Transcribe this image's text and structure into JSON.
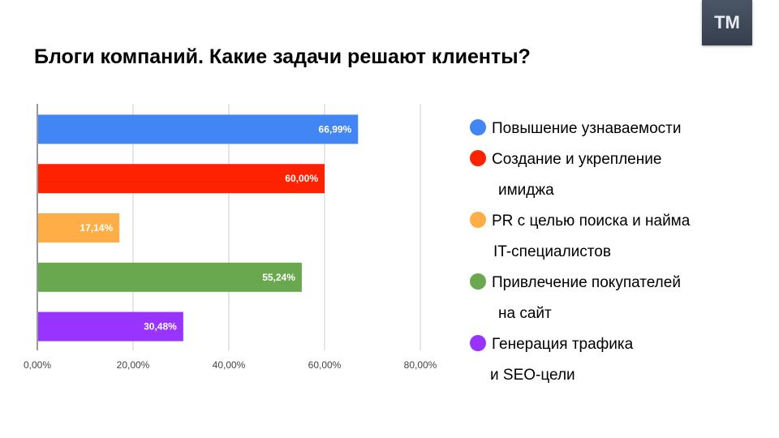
{
  "logo": {
    "text": "TM"
  },
  "title": "Блоги компаний. Какие задачи решают клиенты?",
  "legend": [
    {
      "line1": "Повышение узнаваемости",
      "line2": "",
      "color": "#4285f4"
    },
    {
      "line1": "Создание и укрепление",
      "line2": "имиджа",
      "color": "#ff2200"
    },
    {
      "line1": "PR с целью поиска и найма",
      "line2": "IT-специалистов",
      "color": "#ffad47"
    },
    {
      "line1": "Привлечение покупателей",
      "line2": "на сайт",
      "color": "#6aa84f"
    },
    {
      "line1": "Генерация трафика",
      "line2": "и SEO-цели",
      "color": "#9933ff"
    }
  ],
  "chart_data": {
    "type": "bar",
    "orientation": "horizontal",
    "values": [
      66.99,
      60.0,
      17.14,
      55.24,
      30.48
    ],
    "data_labels": [
      "66,99%",
      "60,00%",
      "17,14%",
      "55,24%",
      "30,48%"
    ],
    "colors": [
      "#4285f4",
      "#ff2200",
      "#ffad47",
      "#6aa84f",
      "#9933ff"
    ],
    "xlim": [
      0,
      80
    ],
    "x_ticks": [
      0,
      20,
      40,
      60,
      80
    ],
    "x_tick_labels": [
      "0,00%",
      "20,00%",
      "40,00%",
      "60,00%",
      "80,00%"
    ],
    "grid": true,
    "legend_position": "right"
  }
}
